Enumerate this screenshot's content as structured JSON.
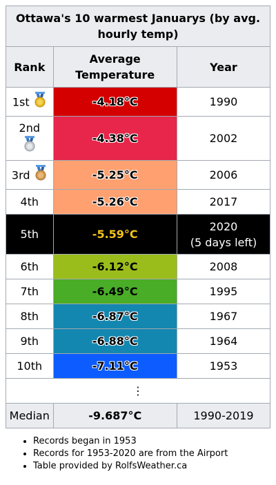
{
  "table": {
    "caption": "Ottawa's 10 warmest Januarys (by avg. hourly temp)",
    "headers": {
      "rank": "Rank",
      "temp": "Average Temperature",
      "year": "Year"
    },
    "rows": [
      {
        "rank": "1st",
        "medal": "gold",
        "temp": "-4.18°C",
        "year": "1990",
        "color": "#d40000"
      },
      {
        "rank": "2nd",
        "medal": "silver",
        "temp": "-4.38°C",
        "year": "2002",
        "color": "#e8254a"
      },
      {
        "rank": "3rd",
        "medal": "bronze",
        "temp": "-5.25°C",
        "year": "2006",
        "color": "#ffa070"
      },
      {
        "rank": "4th",
        "temp": "-5.26°C",
        "year": "2017",
        "color": "#ffa070"
      },
      {
        "rank": "5th",
        "temp": "-5.59°C",
        "year": "2020",
        "year_note": "(5 days left)",
        "color": "#000000",
        "text_color": "#f5c518"
      },
      {
        "rank": "6th",
        "temp": "-6.12°C",
        "year": "2008",
        "color": "#9bbd1c"
      },
      {
        "rank": "7th",
        "temp": "-6.49°C",
        "year": "1995",
        "color": "#4aad28"
      },
      {
        "rank": "8th",
        "temp": "-6.87°C",
        "year": "1967",
        "color": "#1487b0"
      },
      {
        "rank": "9th",
        "temp": "-6.88°C",
        "year": "1964",
        "color": "#1487b0"
      },
      {
        "rank": "10th",
        "temp": "-7.11°C",
        "year": "1953",
        "color": "#0d5cff"
      }
    ],
    "ellipsis": "⋮",
    "median": {
      "label": "Median",
      "temp": "-9.687°C",
      "years": "1990-2019"
    }
  },
  "notes": [
    "Records began in 1953",
    "Records for 1953-2020 are from the Airport",
    "Table provided by RolfsWeather.ca"
  ]
}
